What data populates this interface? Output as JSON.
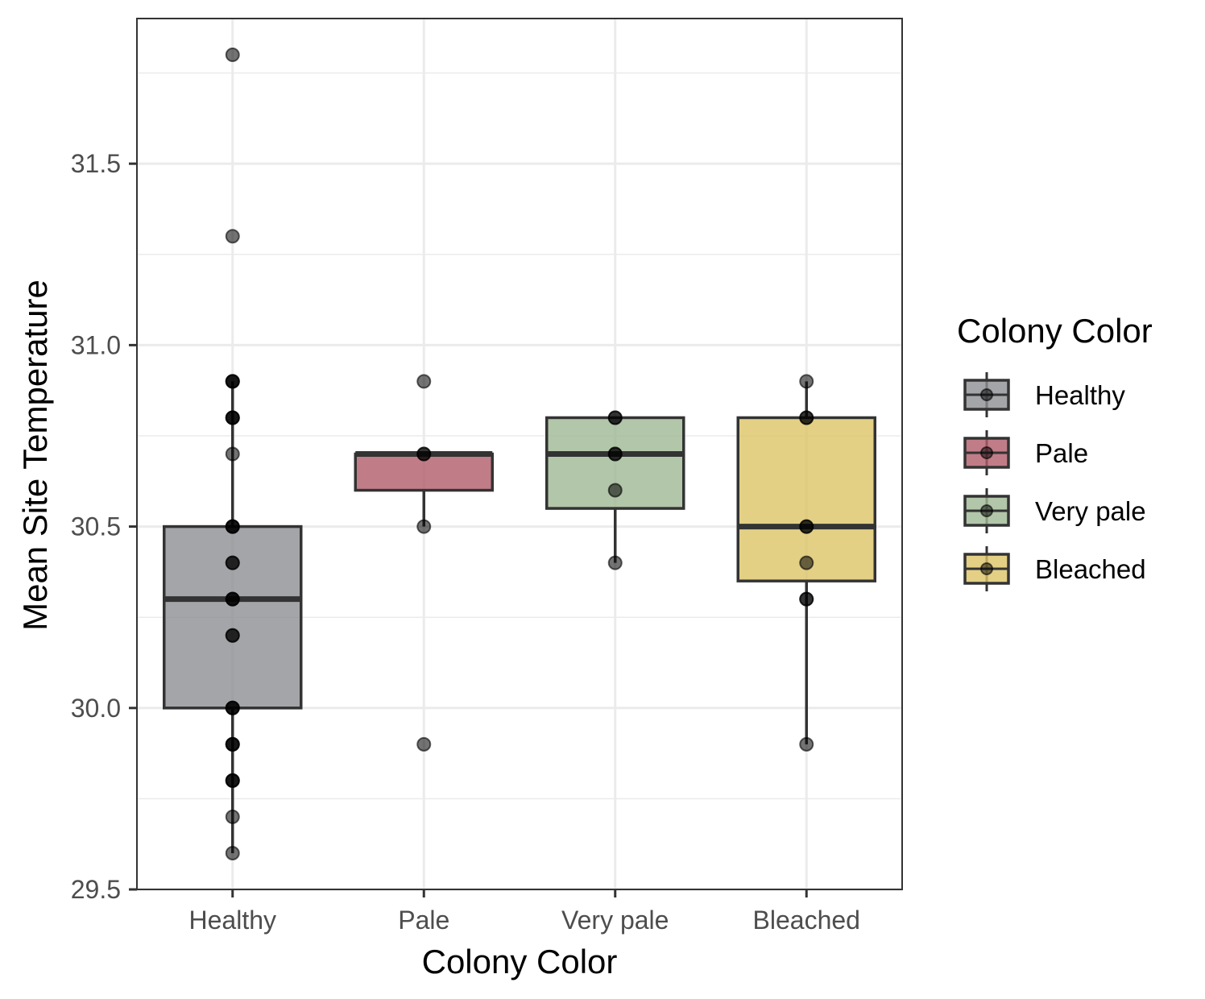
{
  "chart_data": {
    "type": "box",
    "xlabel": "Colony Color",
    "ylabel": "Mean Site Temperature",
    "ylim": [
      29.5,
      31.9
    ],
    "yticks": [
      29.5,
      30.0,
      30.5,
      31.0,
      31.5
    ],
    "ytick_labels": [
      "29.5",
      "30.0",
      "30.5",
      "31.0",
      "31.5"
    ],
    "grid": true,
    "legend": {
      "title": "Colony Color",
      "position": "right"
    },
    "categories": [
      "Healthy",
      "Pale",
      "Very pale",
      "Bleached"
    ],
    "boxes": [
      {
        "name": "Healthy",
        "color": "#8c8e93",
        "q1": 30.0,
        "median": 30.3,
        "q3": 30.5,
        "whisker_low": 29.6,
        "whisker_high": 30.9
      },
      {
        "name": "Pale",
        "color": "#b25d69",
        "q1": 30.6,
        "median": 30.7,
        "q3": 30.7,
        "whisker_low": 30.5,
        "whisker_high": 30.7
      },
      {
        "name": "Very pale",
        "color": "#9fb893",
        "q1": 30.55,
        "median": 30.7,
        "q3": 30.8,
        "whisker_low": 30.4,
        "whisker_high": 30.8
      },
      {
        "name": "Bleached",
        "color": "#dcc466",
        "q1": 30.35,
        "median": 30.5,
        "q3": 30.8,
        "whisker_low": 29.9,
        "whisker_high": 30.9
      }
    ],
    "points": [
      {
        "category": "Healthy",
        "values": [
          31.8,
          31.3,
          30.9,
          30.9,
          30.9,
          30.8,
          30.8,
          30.8,
          30.7,
          30.5,
          30.5,
          30.5,
          30.4,
          30.4,
          30.3,
          30.3,
          30.3,
          30.2,
          30.2,
          30.0,
          30.0,
          30.0,
          29.9,
          29.9,
          29.9,
          29.8,
          29.8,
          29.8,
          29.7,
          29.6
        ]
      },
      {
        "category": "Pale",
        "values": [
          30.9,
          30.7,
          30.7,
          30.5,
          29.9
        ]
      },
      {
        "category": "Very pale",
        "values": [
          30.8,
          30.8,
          30.7,
          30.7,
          30.6,
          30.4
        ]
      },
      {
        "category": "Bleached",
        "values": [
          30.9,
          30.8,
          30.8,
          30.5,
          30.5,
          30.4,
          30.3,
          30.3,
          29.9
        ]
      }
    ]
  }
}
